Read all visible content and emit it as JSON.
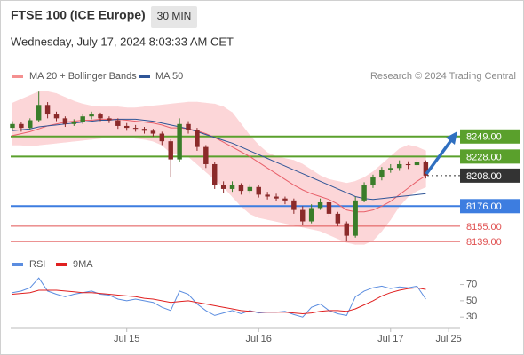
{
  "header": {
    "title": "FTSE 100 (ICE Europe)",
    "timeframe": "30 MIN",
    "timestamp": "Wednesday, July 17, 2024 8:03:33 AM CET"
  },
  "chart_data": [
    {
      "type": "candlestick",
      "credit": "Research © 2024 Trading Central",
      "xlim": [
        -0.2,
        50.9
      ],
      "ylim": [
        8127,
        8299
      ],
      "up_color": "#3a7d2a",
      "down_color": "#8b2a2a",
      "open": [
        8258,
        8262,
        8258,
        8266,
        8282,
        8272,
        8268,
        8262,
        8264,
        8270,
        8272,
        8268,
        8266,
        8260,
        8258,
        8257,
        8255,
        8252,
        8244,
        8225,
        8262,
        8256,
        8238,
        8220,
        8198,
        8194,
        8198,
        8192,
        8196,
        8188,
        8186,
        8184,
        8182,
        8172,
        8160,
        8174,
        8180,
        8168,
        8158,
        8145,
        8182,
        8198,
        8206,
        8214,
        8216,
        8220,
        8219,
        8222
      ],
      "high": [
        8265,
        8264,
        8268,
        8296,
        8285,
        8275,
        8270,
        8267,
        8273,
        8275,
        8274,
        8270,
        8268,
        8263,
        8261,
        8259,
        8257,
        8254,
        8246,
        8268,
        8265,
        8258,
        8240,
        8222,
        8202,
        8202,
        8200,
        8199,
        8198,
        8191,
        8189,
        8186,
        8184,
        8176,
        8178,
        8184,
        8182,
        8170,
        8160,
        8186,
        8201,
        8209,
        8217,
        8220,
        8224,
        8223,
        8225,
        8224
      ],
      "low": [
        8255,
        8254,
        8256,
        8264,
        8268,
        8265,
        8259,
        8260,
        8262,
        8267,
        8265,
        8263,
        8257,
        8255,
        8254,
        8252,
        8249,
        8240,
        8206,
        8222,
        8252,
        8234,
        8216,
        8194,
        8190,
        8191,
        8188,
        8189,
        8185,
        8183,
        8181,
        8178,
        8168,
        8156,
        8158,
        8172,
        8165,
        8155,
        8139,
        8143,
        8180,
        8195,
        8203,
        8211,
        8213,
        8215,
        8217,
        8205
      ],
      "close": [
        8262,
        8258,
        8266,
        8282,
        8272,
        8268,
        8262,
        8264,
        8270,
        8272,
        8268,
        8266,
        8260,
        8258,
        8257,
        8255,
        8252,
        8244,
        8225,
        8262,
        8256,
        8238,
        8220,
        8198,
        8194,
        8198,
        8192,
        8196,
        8188,
        8186,
        8184,
        8182,
        8172,
        8160,
        8174,
        8180,
        8168,
        8158,
        8145,
        8182,
        8198,
        8206,
        8214,
        8216,
        8220,
        8219,
        8222,
        8208
      ],
      "series": [
        {
          "name": "MA 20 + Bollinger Bands",
          "color": "#e8606a",
          "band_color": "#fcd6d8",
          "values": [
            8250,
            8252,
            8254,
            8257,
            8260,
            8262,
            8264,
            8265,
            8266,
            8266,
            8267,
            8267,
            8267,
            8266,
            8265,
            8264,
            8263,
            8261,
            8258,
            8258,
            8257,
            8255,
            8252,
            8248,
            8243,
            8238,
            8233,
            8228,
            8222,
            8216,
            8210,
            8204,
            8198,
            8193,
            8189,
            8186,
            8183,
            8178,
            8172,
            8170,
            8170,
            8172,
            8176,
            8181,
            8188,
            8195,
            8202,
            8208
          ],
          "upper": [
            8284,
            8288,
            8292,
            8296,
            8296,
            8294,
            8290,
            8286,
            8283,
            8281,
            8280,
            8280,
            8280,
            8279,
            8279,
            8280,
            8281,
            8282,
            8283,
            8284,
            8285,
            8285,
            8284,
            8283,
            8280,
            8274,
            8262,
            8250,
            8240,
            8232,
            8228,
            8226,
            8224,
            8220,
            8214,
            8208,
            8204,
            8202,
            8200,
            8202,
            8206,
            8212,
            8220,
            8228,
            8236,
            8240,
            8238,
            8234
          ],
          "lower": [
            8240,
            8240,
            8239,
            8240,
            8241,
            8242,
            8243,
            8244,
            8245,
            8246,
            8247,
            8248,
            8248,
            8248,
            8247,
            8246,
            8244,
            8240,
            8232,
            8230,
            8228,
            8220,
            8212,
            8204,
            8196,
            8186,
            8176,
            8168,
            8164,
            8162,
            8160,
            8158,
            8156,
            8154,
            8152,
            8150,
            8146,
            8142,
            8138,
            8136,
            8136,
            8140,
            8150,
            8162,
            8176,
            8186,
            8192,
            8196
          ]
        },
        {
          "name": "MA 50",
          "color": "#2f5597",
          "values": [
            8255,
            8256,
            8257,
            8259,
            8260,
            8261,
            8262,
            8263,
            8264,
            8265,
            8266,
            8266,
            8267,
            8267,
            8267,
            8266,
            8265,
            8263,
            8261,
            8259,
            8257,
            8254,
            8251,
            8248,
            8245,
            8242,
            8238,
            8234,
            8230,
            8226,
            8222,
            8218,
            8214,
            8210,
            8206,
            8202,
            8198,
            8194,
            8190,
            8186,
            8184,
            8183,
            8184,
            8185,
            8186,
            8187,
            8188,
            8189
          ]
        }
      ],
      "levels": [
        {
          "value": 8249,
          "label": "8249.00",
          "color": "#5aa02c",
          "style": "solid",
          "boxed": true
        },
        {
          "value": 8228,
          "label": "8228.00",
          "color": "#5aa02c",
          "style": "solid",
          "boxed": true
        },
        {
          "value": 8208,
          "label": "8208.00",
          "color": "#333333",
          "style": "dotted",
          "boxed": true
        },
        {
          "value": 8176,
          "label": "8176.00",
          "color": "#3d7de0",
          "style": "solid",
          "boxed": true
        },
        {
          "value": 8155,
          "label": "8155.00",
          "color": "#e05050",
          "style": "solid",
          "boxed": false
        },
        {
          "value": 8139,
          "label": "8139.00",
          "color": "#e05050",
          "style": "solid",
          "boxed": false
        }
      ]
    },
    {
      "type": "line",
      "xlim": [
        -0.2,
        50.9
      ],
      "ylim": [
        16,
        87
      ],
      "yticks": [
        30,
        50,
        70
      ],
      "xticks": [
        {
          "value": 13,
          "label": "Jul 15"
        },
        {
          "value": 28,
          "label": "Jul 16"
        },
        {
          "value": 43,
          "label": "Jul 17"
        },
        {
          "value": 49.6,
          "label": "Jul 25"
        }
      ],
      "series": [
        {
          "name": "RSI",
          "color": "#5b8de0",
          "values": [
            60,
            62,
            66,
            78,
            62,
            58,
            55,
            58,
            60,
            62,
            58,
            57,
            52,
            50,
            52,
            50,
            48,
            42,
            38,
            62,
            58,
            46,
            38,
            32,
            35,
            38,
            34,
            38,
            35,
            36,
            36,
            37,
            33,
            30,
            42,
            46,
            38,
            34,
            32,
            55,
            62,
            66,
            68,
            65,
            67,
            66,
            68,
            52
          ]
        },
        {
          "name": "9MA",
          "color": "#e02020",
          "values": [
            58,
            59,
            60,
            63,
            63,
            63,
            62,
            61,
            60,
            60,
            59,
            58,
            57,
            56,
            55,
            53,
            52,
            50,
            48,
            49,
            50,
            48,
            46,
            44,
            42,
            40,
            38,
            37,
            36,
            36,
            36,
            36,
            35,
            34,
            35,
            37,
            38,
            38,
            37,
            40,
            45,
            50,
            56,
            60,
            63,
            65,
            66,
            64
          ]
        }
      ]
    }
  ]
}
